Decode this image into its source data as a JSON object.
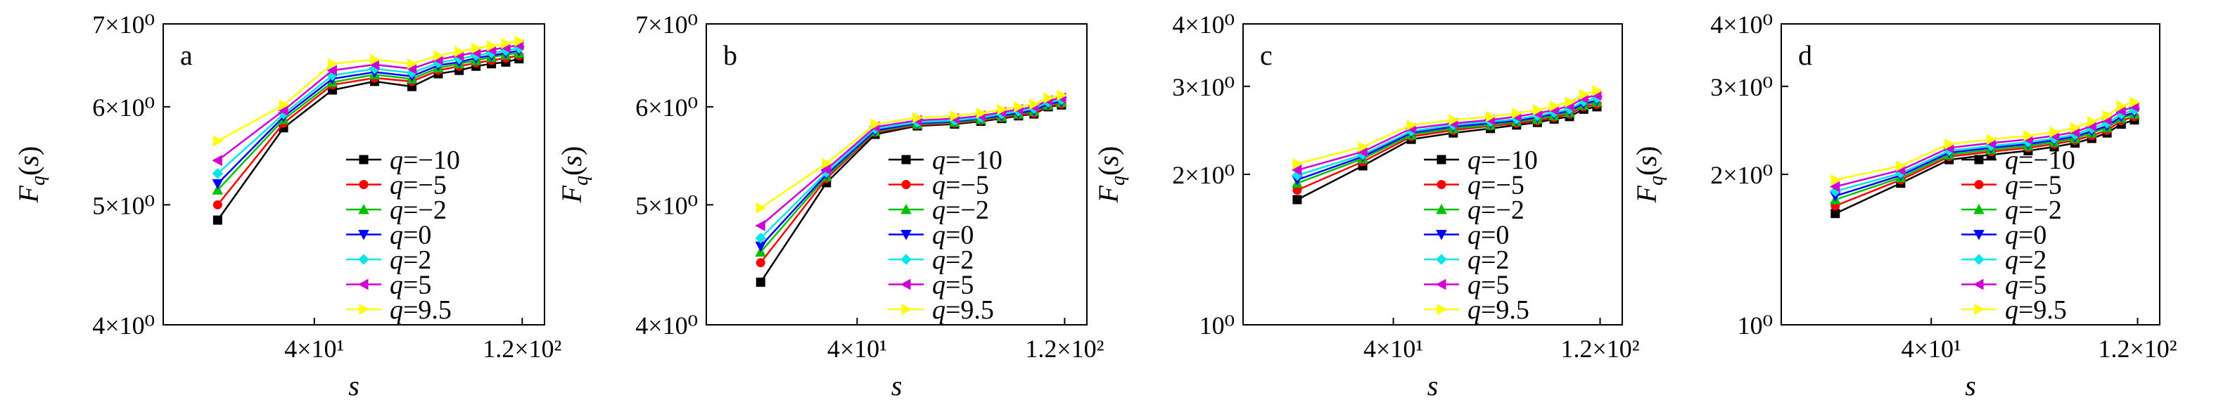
{
  "series_styles": [
    {
      "name": "q=−10",
      "q": "−10",
      "color": "#000000",
      "marker": "square"
    },
    {
      "name": "q=−5",
      "q": "−5",
      "color": "#ff0000",
      "marker": "circle"
    },
    {
      "name": "q=−2",
      "q": "−2",
      "color": "#00c000",
      "marker": "triangle-up"
    },
    {
      "name": "q=0",
      "q": "0",
      "color": "#0000ff",
      "marker": "triangle-down"
    },
    {
      "name": "q=2",
      "q": "2",
      "color": "#00e5e5",
      "marker": "diamond"
    },
    {
      "name": "q=5",
      "q": "5",
      "color": "#d000d0",
      "marker": "triangle-left"
    },
    {
      "name": "q=9.5",
      "q": "9.5",
      "color": "#ffff00",
      "marker": "triangle-right"
    }
  ],
  "chart_data": [
    {
      "panel": "a",
      "type": "line",
      "xlabel": "s",
      "ylabel": "F_q(s)",
      "x_scale": "log",
      "y_scale": "log",
      "xlim": [
        18,
        135
      ],
      "ylim": [
        4,
        7
      ],
      "x_ticks": [
        {
          "value": 40,
          "label": "4×10¹"
        },
        {
          "value": 120,
          "label": "1.2×10²"
        }
      ],
      "y_ticks": [
        {
          "value": 4,
          "label": "4×10⁰"
        },
        {
          "value": 5,
          "label": "5×10⁰"
        },
        {
          "value": 6,
          "label": "6×10⁰"
        },
        {
          "value": 7,
          "label": "7×10⁰"
        }
      ],
      "legend_position": "lower-right",
      "x": [
        24,
        34,
        44,
        55,
        67,
        77,
        86,
        94,
        102,
        110,
        118
      ],
      "series": [
        {
          "name": "q=−10",
          "values": [
            4.86,
            5.77,
            6.19,
            6.29,
            6.23,
            6.38,
            6.42,
            6.47,
            6.5,
            6.52,
            6.56
          ]
        },
        {
          "name": "q=−5",
          "values": [
            5.0,
            5.82,
            6.25,
            6.33,
            6.29,
            6.42,
            6.47,
            6.51,
            6.54,
            6.57,
            6.6
          ]
        },
        {
          "name": "q=−2",
          "values": [
            5.14,
            5.86,
            6.28,
            6.37,
            6.32,
            6.45,
            6.5,
            6.54,
            6.58,
            6.61,
            6.63
          ]
        },
        {
          "name": "q=0",
          "values": [
            5.2,
            5.89,
            6.32,
            6.4,
            6.35,
            6.48,
            6.52,
            6.57,
            6.6,
            6.63,
            6.66
          ]
        },
        {
          "name": "q=2",
          "values": [
            5.3,
            5.92,
            6.36,
            6.44,
            6.39,
            6.51,
            6.56,
            6.6,
            6.63,
            6.66,
            6.69
          ]
        },
        {
          "name": "q=5",
          "values": [
            5.43,
            5.96,
            6.42,
            6.49,
            6.44,
            6.55,
            6.6,
            6.64,
            6.67,
            6.7,
            6.73
          ]
        },
        {
          "name": "q=9.5",
          "values": [
            5.63,
            6.02,
            6.5,
            6.55,
            6.5,
            6.6,
            6.65,
            6.69,
            6.72,
            6.75,
            6.78
          ]
        }
      ]
    },
    {
      "panel": "b",
      "type": "line",
      "xlabel": "s",
      "ylabel": "F_q(s)",
      "x_scale": "log",
      "y_scale": "log",
      "xlim": [
        18,
        135
      ],
      "ylim": [
        4,
        7
      ],
      "x_ticks": [
        {
          "value": 40,
          "label": "4×10¹"
        },
        {
          "value": 120,
          "label": "1.2×10²"
        }
      ],
      "y_ticks": [
        {
          "value": 4,
          "label": "4×10⁰"
        },
        {
          "value": 5,
          "label": "5×10⁰"
        },
        {
          "value": 6,
          "label": "6×10⁰"
        },
        {
          "value": 7,
          "label": "7×10⁰"
        }
      ],
      "legend_position": "lower-right",
      "x": [
        24,
        34,
        44,
        55,
        67,
        77,
        86,
        94,
        102,
        110,
        118
      ],
      "series": [
        {
          "name": "q=−10",
          "values": [
            4.33,
            5.21,
            5.7,
            5.79,
            5.81,
            5.84,
            5.87,
            5.9,
            5.92,
            6.0,
            6.02
          ]
        },
        {
          "name": "q=−5",
          "values": [
            4.49,
            5.25,
            5.72,
            5.8,
            5.82,
            5.85,
            5.88,
            5.91,
            5.93,
            6.01,
            6.03
          ]
        },
        {
          "name": "q=−2",
          "values": [
            4.58,
            5.27,
            5.73,
            5.81,
            5.83,
            5.86,
            5.89,
            5.92,
            5.95,
            6.02,
            6.05
          ]
        },
        {
          "name": "q=0",
          "values": [
            4.63,
            5.29,
            5.74,
            5.82,
            5.84,
            5.87,
            5.9,
            5.93,
            5.96,
            6.03,
            6.06
          ]
        },
        {
          "name": "q=2",
          "values": [
            4.7,
            5.31,
            5.76,
            5.83,
            5.85,
            5.88,
            5.92,
            5.95,
            5.98,
            6.05,
            6.08
          ]
        },
        {
          "name": "q=5",
          "values": [
            4.81,
            5.34,
            5.78,
            5.85,
            5.87,
            5.9,
            5.94,
            5.97,
            6.0,
            6.07,
            6.1
          ]
        },
        {
          "name": "q=9.5",
          "values": [
            4.97,
            5.4,
            5.81,
            5.88,
            5.9,
            5.93,
            5.97,
            6.0,
            6.03,
            6.1,
            6.13
          ]
        }
      ]
    },
    {
      "panel": "c",
      "type": "line",
      "xlabel": "s",
      "ylabel": "F_q(s)",
      "x_scale": "log",
      "y_scale": "log",
      "xlim": [
        18,
        135
      ],
      "ylim": [
        1,
        4
      ],
      "x_ticks": [
        {
          "value": 40,
          "label": "4×10¹"
        },
        {
          "value": 120,
          "label": "1.2×10²"
        }
      ],
      "y_ticks": [
        {
          "value": 1,
          "label": "10⁰"
        },
        {
          "value": 2,
          "label": "2×10⁰"
        },
        {
          "value": 3,
          "label": "3×10⁰"
        },
        {
          "value": 4,
          "label": "4×10⁰"
        }
      ],
      "legend_position": "lower-right",
      "x": [
        24,
        34,
        44,
        55,
        67,
        77,
        86,
        94,
        102,
        110,
        118
      ],
      "series": [
        {
          "name": "q=−10",
          "values": [
            1.78,
            2.08,
            2.35,
            2.42,
            2.47,
            2.51,
            2.54,
            2.58,
            2.61,
            2.7,
            2.73
          ]
        },
        {
          "name": "q=−5",
          "values": [
            1.86,
            2.12,
            2.38,
            2.45,
            2.5,
            2.53,
            2.56,
            2.6,
            2.64,
            2.73,
            2.76
          ]
        },
        {
          "name": "q=−2",
          "values": [
            1.92,
            2.15,
            2.4,
            2.47,
            2.51,
            2.55,
            2.58,
            2.62,
            2.66,
            2.75,
            2.79
          ]
        },
        {
          "name": "q=0",
          "values": [
            1.95,
            2.17,
            2.42,
            2.49,
            2.53,
            2.56,
            2.6,
            2.64,
            2.68,
            2.77,
            2.81
          ]
        },
        {
          "name": "q=2",
          "values": [
            1.99,
            2.19,
            2.44,
            2.51,
            2.55,
            2.58,
            2.62,
            2.66,
            2.7,
            2.8,
            2.84
          ]
        },
        {
          "name": "q=5",
          "values": [
            2.04,
            2.22,
            2.47,
            2.53,
            2.57,
            2.61,
            2.65,
            2.69,
            2.74,
            2.84,
            2.88
          ]
        },
        {
          "name": "q=9.5",
          "values": [
            2.1,
            2.27,
            2.51,
            2.57,
            2.61,
            2.65,
            2.69,
            2.74,
            2.79,
            2.89,
            2.94
          ]
        }
      ]
    },
    {
      "panel": "d",
      "type": "line",
      "xlabel": "s",
      "ylabel": "F_q(s)",
      "x_scale": "log",
      "y_scale": "log",
      "xlim": [
        18,
        135
      ],
      "ylim": [
        1,
        4
      ],
      "x_ticks": [
        {
          "value": 40,
          "label": "4×10¹"
        },
        {
          "value": 120,
          "label": "1.2×10²"
        }
      ],
      "y_ticks": [
        {
          "value": 1,
          "label": "10⁰"
        },
        {
          "value": 2,
          "label": "2×10⁰"
        },
        {
          "value": 3,
          "label": "3×10⁰"
        },
        {
          "value": 4,
          "label": "4×10⁰"
        }
      ],
      "legend_position": "lower-right",
      "x": [
        24,
        34,
        44,
        55,
        67,
        77,
        86,
        94,
        102,
        110,
        118
      ],
      "series": [
        {
          "name": "q=−10",
          "values": [
            1.67,
            1.92,
            2.14,
            2.19,
            2.23,
            2.27,
            2.31,
            2.36,
            2.42,
            2.52,
            2.57
          ]
        },
        {
          "name": "q=−5",
          "values": [
            1.73,
            1.95,
            2.17,
            2.22,
            2.26,
            2.3,
            2.34,
            2.39,
            2.45,
            2.56,
            2.61
          ]
        },
        {
          "name": "q=−2",
          "values": [
            1.78,
            1.97,
            2.19,
            2.24,
            2.28,
            2.32,
            2.36,
            2.42,
            2.48,
            2.59,
            2.64
          ]
        },
        {
          "name": "q=0",
          "values": [
            1.81,
            1.99,
            2.21,
            2.26,
            2.3,
            2.34,
            2.38,
            2.44,
            2.5,
            2.61,
            2.66
          ]
        },
        {
          "name": "q=2",
          "values": [
            1.85,
            2.01,
            2.23,
            2.28,
            2.32,
            2.36,
            2.4,
            2.47,
            2.53,
            2.64,
            2.69
          ]
        },
        {
          "name": "q=5",
          "values": [
            1.89,
            2.04,
            2.26,
            2.31,
            2.35,
            2.39,
            2.43,
            2.5,
            2.57,
            2.68,
            2.73
          ]
        },
        {
          "name": "q=9.5",
          "values": [
            1.95,
            2.08,
            2.3,
            2.35,
            2.39,
            2.43,
            2.48,
            2.55,
            2.62,
            2.74,
            2.79
          ]
        }
      ]
    }
  ]
}
